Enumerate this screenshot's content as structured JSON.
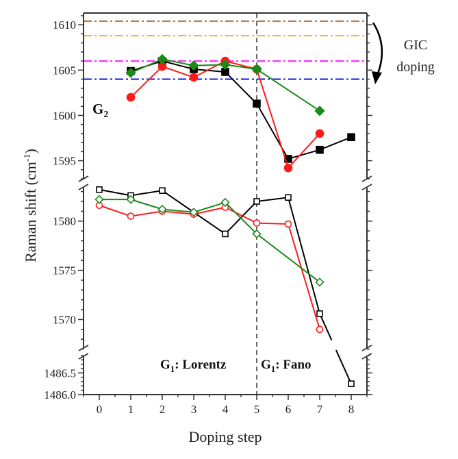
{
  "chart_data": {
    "type": "line",
    "title": "",
    "xlabel": "Doping step",
    "ylabel": "Raman shift (cm",
    "ylabel_sup": "-1",
    "ylabel_close": ")",
    "x_ticks": [
      0,
      1,
      2,
      3,
      4,
      5,
      6,
      7,
      8
    ],
    "x_range": [
      -0.5,
      8.5
    ],
    "y_segments": [
      {
        "name": "upper",
        "range": [
          1592.7,
          1611.3
        ],
        "ticks": [
          1595,
          1600,
          1605,
          1610
        ],
        "tick_labels": [
          "1595",
          "1600",
          "1605",
          "1610"
        ]
      },
      {
        "name": "middle",
        "range": [
          1566.9,
          1583.6
        ],
        "ticks": [
          1570,
          1575,
          1580
        ],
        "tick_labels": [
          "1570",
          "1575",
          "1580"
        ]
      },
      {
        "name": "lower",
        "range": [
          1486.0,
          1486.9
        ],
        "ticks": [
          1486.0,
          1486.5
        ],
        "tick_labels": [
          "1486.0",
          "1486.5"
        ]
      }
    ],
    "reference_lines": [
      {
        "name": "ref-brown",
        "y": 1610.4,
        "color": "#c07a4e",
        "style": "dash-dot"
      },
      {
        "name": "ref-orange",
        "y": 1608.8,
        "color": "#f5b82e",
        "style": "dash-dot"
      },
      {
        "name": "ref-magenta",
        "y": 1606.0,
        "color": "#ff30ff",
        "style": "dash-dot"
      },
      {
        "name": "ref-blue",
        "y": 1604.0,
        "color": "#2020f0",
        "style": "dash-dot"
      }
    ],
    "divider_x": 5,
    "series": [
      {
        "name": "G2 black",
        "group": "G2",
        "color": "#000000",
        "marker": "square",
        "filled": true,
        "x": [
          1,
          2,
          3,
          4,
          5,
          6,
          7,
          8
        ],
        "y": [
          1604.9,
          1606.0,
          1605.1,
          1604.8,
          1601.3,
          1595.2,
          1596.2,
          1597.6
        ]
      },
      {
        "name": "G2 red",
        "group": "G2",
        "color": "#ff1a1a",
        "marker": "circle",
        "filled": true,
        "x": [
          1,
          2,
          3,
          4,
          5,
          6,
          7
        ],
        "y": [
          1602.0,
          1605.4,
          1604.2,
          1606.0,
          1605.1,
          1594.2,
          1598.0
        ]
      },
      {
        "name": "G2 green",
        "group": "G2",
        "color": "#1a8a1a",
        "marker": "diamond",
        "filled": true,
        "x": [
          1,
          2,
          3,
          4,
          5,
          7
        ],
        "y": [
          1604.7,
          1606.2,
          1605.5,
          1605.6,
          1605.1,
          1600.5
        ]
      },
      {
        "name": "G1 black",
        "group": "G1",
        "color": "#000000",
        "marker": "square",
        "filled": false,
        "x": [
          0,
          1,
          2,
          4,
          5,
          6,
          7,
          8
        ],
        "y": [
          1583.2,
          1582.6,
          1583.1,
          1578.7,
          1582.0,
          1582.4,
          1570.6,
          1486.25
        ]
      },
      {
        "name": "G1 red",
        "group": "G1",
        "color": "#ff1a1a",
        "marker": "circle",
        "filled": false,
        "x": [
          0,
          1,
          2,
          3,
          4,
          5,
          6,
          7
        ],
        "y": [
          1581.6,
          1580.5,
          1581.0,
          1580.7,
          1581.4,
          1579.8,
          1579.7,
          1569.0
        ]
      },
      {
        "name": "G1 green",
        "group": "G1",
        "color": "#1a8a1a",
        "marker": "diamond",
        "filled": false,
        "x": [
          0,
          1,
          2,
          3,
          4,
          5,
          7
        ],
        "y": [
          1582.2,
          1582.2,
          1581.2,
          1580.9,
          1581.9,
          1578.7,
          1573.8
        ]
      }
    ],
    "annotations": {
      "g2_label": "G",
      "g2_sub": "2",
      "g1_lorentz_prefix": "G",
      "g1_lorentz_sub": "1",
      "g1_lorentz_text": ": Lorentz",
      "g1_fano_prefix": "G",
      "g1_fano_sub": "1",
      "g1_fano_text": ": Fano",
      "gic_line1": "GIC",
      "gic_line2": "doping"
    },
    "grid": false,
    "legend": "none"
  }
}
